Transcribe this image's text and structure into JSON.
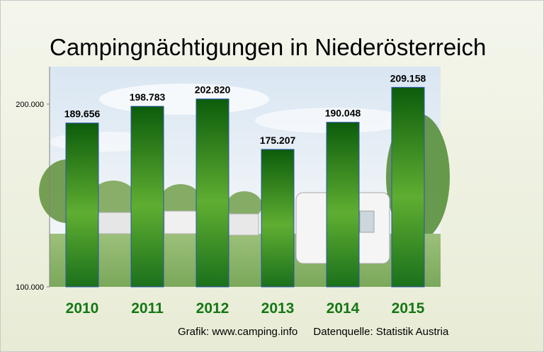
{
  "chart_data": {
    "type": "bar",
    "title": "Campingnächtigungen in Niederösterreich",
    "categories": [
      "2010",
      "2011",
      "2012",
      "2013",
      "2014",
      "2015"
    ],
    "values": [
      189656,
      198783,
      202820,
      175207,
      190048,
      209158
    ],
    "value_labels": [
      "189.656",
      "198.783",
      "202.820",
      "175.207",
      "190.048",
      "209.158"
    ],
    "ylim": [
      100000,
      220000
    ],
    "yticks": [
      100000,
      200000
    ],
    "ytick_labels": [
      "100.000",
      "200.000"
    ],
    "xlabel": "",
    "ylabel": "",
    "grid": false,
    "bar_color": "#1f7a1f"
  },
  "footer": {
    "credit": "Grafik: www.camping.info",
    "source": "Datenquelle: Statistik Austria"
  }
}
